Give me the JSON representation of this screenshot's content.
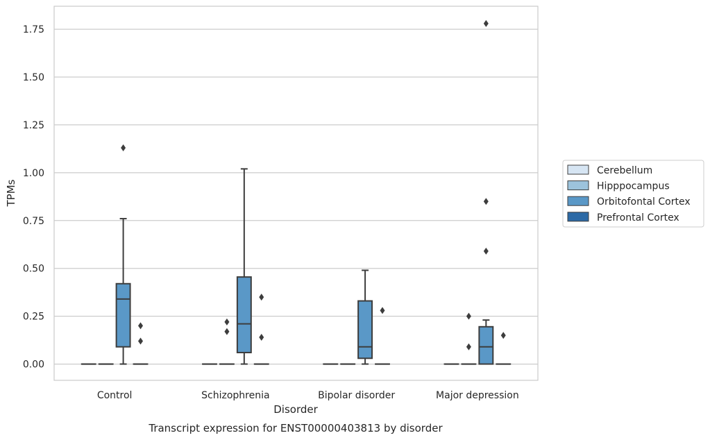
{
  "chart_data": {
    "type": "box",
    "xlabel": "Disorder",
    "ylabel": "TPMs",
    "caption": "Transcript expression for ENST00000403813 by disorder",
    "categories": [
      "Control",
      "Schizophrenia",
      "Bipolar disorder",
      "Major depression"
    ],
    "ylim": [
      -0.085,
      1.87
    ],
    "yticks": [
      "0.00",
      "0.25",
      "0.50",
      "0.75",
      "1.00",
      "1.25",
      "1.50",
      "1.75"
    ],
    "grid": "horizontal",
    "legend_position": "right",
    "series": [
      {
        "name": "Cerebellum",
        "color": "#d6e5f3",
        "boxes": [
          {
            "q1": 0,
            "median": 0,
            "q3": 0,
            "whisker_low": 0,
            "whisker_high": 0,
            "outliers": []
          },
          {
            "q1": 0,
            "median": 0,
            "q3": 0,
            "whisker_low": 0,
            "whisker_high": 0,
            "outliers": []
          },
          {
            "q1": 0,
            "median": 0,
            "q3": 0,
            "whisker_low": 0,
            "whisker_high": 0,
            "outliers": []
          },
          {
            "q1": 0,
            "median": 0,
            "q3": 0,
            "whisker_low": 0,
            "whisker_high": 0,
            "outliers": []
          }
        ]
      },
      {
        "name": "Hipppocampus",
        "color": "#9cc3dc",
        "boxes": [
          {
            "q1": 0,
            "median": 0,
            "q3": 0,
            "whisker_low": 0,
            "whisker_high": 0,
            "outliers": []
          },
          {
            "q1": 0,
            "median": 0,
            "q3": 0,
            "whisker_low": 0,
            "whisker_high": 0,
            "outliers": [
              0.17,
              0.22
            ]
          },
          {
            "q1": 0,
            "median": 0,
            "q3": 0,
            "whisker_low": 0,
            "whisker_high": 0,
            "outliers": []
          },
          {
            "q1": 0,
            "median": 0,
            "q3": 0,
            "whisker_low": 0,
            "whisker_high": 0,
            "outliers": [
              0.09,
              0.25
            ]
          }
        ]
      },
      {
        "name": "Orbitofontal Cortex",
        "color": "#5a98c7",
        "boxes": [
          {
            "q1": 0.09,
            "median": 0.34,
            "q3": 0.42,
            "whisker_low": 0,
            "whisker_high": 0.76,
            "outliers": [
              1.13
            ]
          },
          {
            "q1": 0.06,
            "median": 0.21,
            "q3": 0.455,
            "whisker_low": 0,
            "whisker_high": 1.02,
            "outliers": []
          },
          {
            "q1": 0.03,
            "median": 0.09,
            "q3": 0.33,
            "whisker_low": 0,
            "whisker_high": 0.49,
            "outliers": []
          },
          {
            "q1": 0,
            "median": 0.09,
            "q3": 0.195,
            "whisker_low": 0,
            "whisker_high": 0.23,
            "outliers": [
              0.59,
              0.85,
              1.78
            ]
          }
        ]
      },
      {
        "name": "Prefrontal Cortex",
        "color": "#2c6aa6",
        "boxes": [
          {
            "q1": 0,
            "median": 0,
            "q3": 0,
            "whisker_low": 0,
            "whisker_high": 0,
            "outliers": [
              0.12,
              0.2
            ]
          },
          {
            "q1": 0,
            "median": 0,
            "q3": 0,
            "whisker_low": 0,
            "whisker_high": 0,
            "outliers": [
              0.14,
              0.35
            ]
          },
          {
            "q1": 0,
            "median": 0,
            "q3": 0,
            "whisker_low": 0,
            "whisker_high": 0,
            "outliers": [
              0.28
            ]
          },
          {
            "q1": 0,
            "median": 0,
            "q3": 0,
            "whisker_low": 0,
            "whisker_high": 0,
            "outliers": [
              0.15
            ]
          }
        ]
      }
    ]
  }
}
